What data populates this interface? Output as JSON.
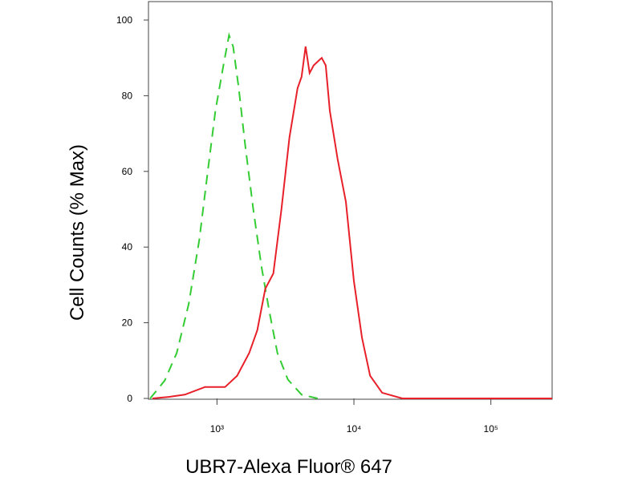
{
  "chart_data": {
    "type": "line",
    "x_label": "UBR7-Alexa Fluor® 647",
    "y_label": "Cell Counts (% Max)",
    "xscale": "log",
    "xlim": [
      316,
      280000
    ],
    "ylim": [
      0,
      105
    ],
    "xticks": [
      {
        "value": 1000,
        "label": "10³"
      },
      {
        "value": 10000,
        "label": "10⁴"
      },
      {
        "value": 100000,
        "label": "10⁵"
      }
    ],
    "yticks": [
      0,
      20,
      40,
      60,
      80,
      100
    ],
    "series": [
      {
        "color": "#33cc33",
        "dash": true,
        "x": [
          325,
          415,
          508,
          622,
          743,
          850,
          973,
          1115,
          1225,
          1311,
          1442,
          1607,
          1841,
          2109,
          2411,
          2762,
          3294,
          4147,
          5433
        ],
        "values": [
          0,
          4.7,
          12,
          25,
          42,
          59,
          76,
          88,
          96,
          93,
          82,
          67,
          50,
          35,
          23,
          12,
          5,
          1,
          0
        ]
      },
      {
        "color": "#e8202a",
        "dash": false,
        "x": [
          338,
          444,
          582,
          816,
          1145,
          1403,
          1719,
          1968,
          2254,
          2580,
          2955,
          3383,
          3874,
          4147,
          4436,
          4745,
          5080,
          5433,
          5821,
          6223,
          6668,
          7621,
          8730,
          10000,
          11450,
          13120,
          16070,
          22540,
          280000
        ],
        "values": [
          0,
          0.4,
          1,
          3,
          3,
          6,
          12,
          18,
          29,
          33,
          50,
          69,
          82,
          85,
          93,
          86,
          88,
          89,
          90,
          88,
          76,
          63,
          52,
          31,
          16,
          6,
          1.5,
          0,
          0
        ]
      }
    ]
  }
}
